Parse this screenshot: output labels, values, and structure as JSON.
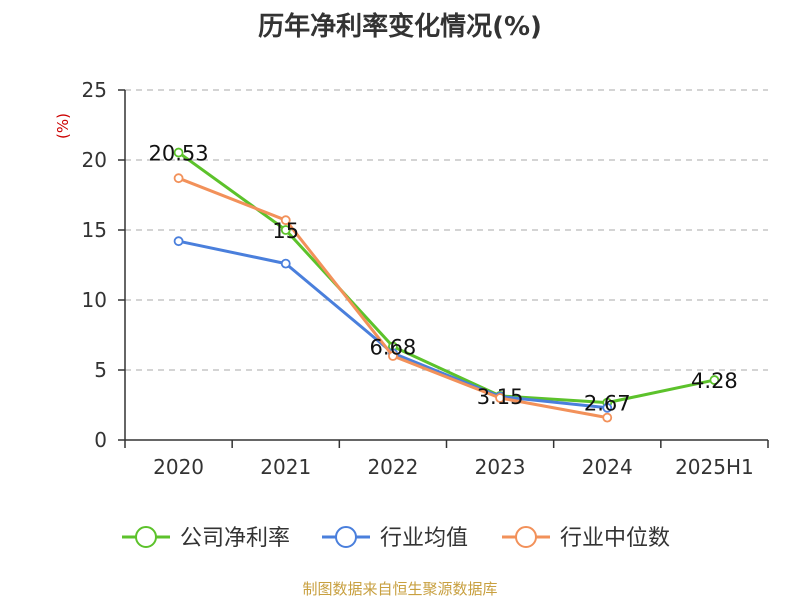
{
  "chart_data": {
    "type": "line",
    "title": "历年净利率变化情况(%)",
    "ylabel": "(%)",
    "categories": [
      "2020",
      "2021",
      "2022",
      "2023",
      "2024",
      "2025H1"
    ],
    "ylim": [
      0,
      25
    ],
    "yticks": [
      0,
      5,
      10,
      15,
      20,
      25
    ],
    "grid": true,
    "legend_position": "bottom",
    "series": [
      {
        "name": "公司净利率",
        "color": "#5cc22b",
        "values": [
          20.53,
          15,
          6.68,
          3.15,
          2.67,
          4.28
        ],
        "labels": [
          "20.53",
          "15",
          "6.68",
          "3.15",
          "2.67",
          "4.28"
        ]
      },
      {
        "name": "行业均值",
        "color": "#4a7fdc",
        "values": [
          14.2,
          12.6,
          6.2,
          3.1,
          2.3,
          null
        ]
      },
      {
        "name": "行业中位数",
        "color": "#f2915a",
        "values": [
          18.7,
          15.7,
          6.0,
          3.0,
          1.6,
          null
        ]
      }
    ],
    "source": "制图数据来自恒生聚源数据库"
  }
}
